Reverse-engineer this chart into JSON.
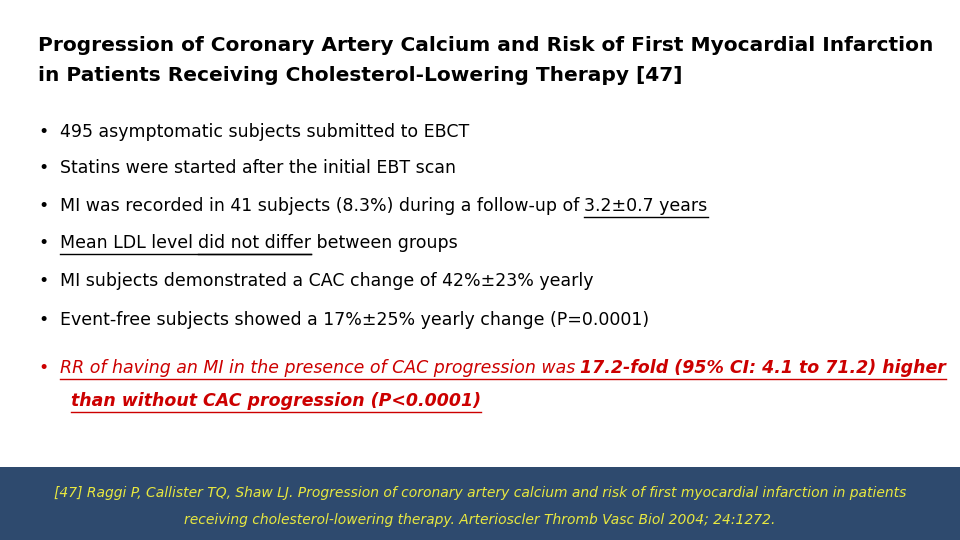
{
  "title_line1": "Progression of Coronary Artery Calcium and Risk of First Myocardial Infarction",
  "title_line2": "in Patients Receiving Cholesterol-Lowering Therapy [47]",
  "footer_text_line1": "[47] Raggi P, Callister TQ, Shaw LJ. Progression of coronary artery calcium and risk of first myocardial infarction in patients",
  "footer_text_line2": "receiving cholesterol-lowering therapy. Arterioscler Thromb Vasc Biol 2004; 24:1272.",
  "footer_bg": "#2e4a6e",
  "footer_text_color": "#e8e840",
  "bg_color": "#ffffff",
  "title_fontsize": 14.5,
  "bullet_fontsize": 12.5,
  "footer_fontsize": 10.0,
  "bullet1": "495 asymptomatic subjects submitted to EBCT",
  "bullet2": "Statins were started after the initial EBT scan",
  "bullet3_pre": "MI was recorded in 41 subjects (8.3%) during a follow-up of ",
  "bullet3_under": "3.2±0.7 years",
  "bullet4_pre": "",
  "bullet4_under": "Mean LDL level did not differ",
  "bullet4_post": " between groups",
  "bullet5": "MI subjects demonstrated a CAC change of 42%±23% yearly",
  "bullet6": "Event-free subjects showed a 17%±25% yearly change (P=0.0001)",
  "bullet7_line1_pre_italic": "RR of having an MI in the presence of CAC progression was ",
  "bullet7_line1_bold": "17.2-fold (95% CI: 4.1 to 71.2) higher",
  "bullet7_line2_bold": "than without CAC progression (P<0.0001)",
  "red_color": "#cc0000",
  "black_color": "#000000"
}
